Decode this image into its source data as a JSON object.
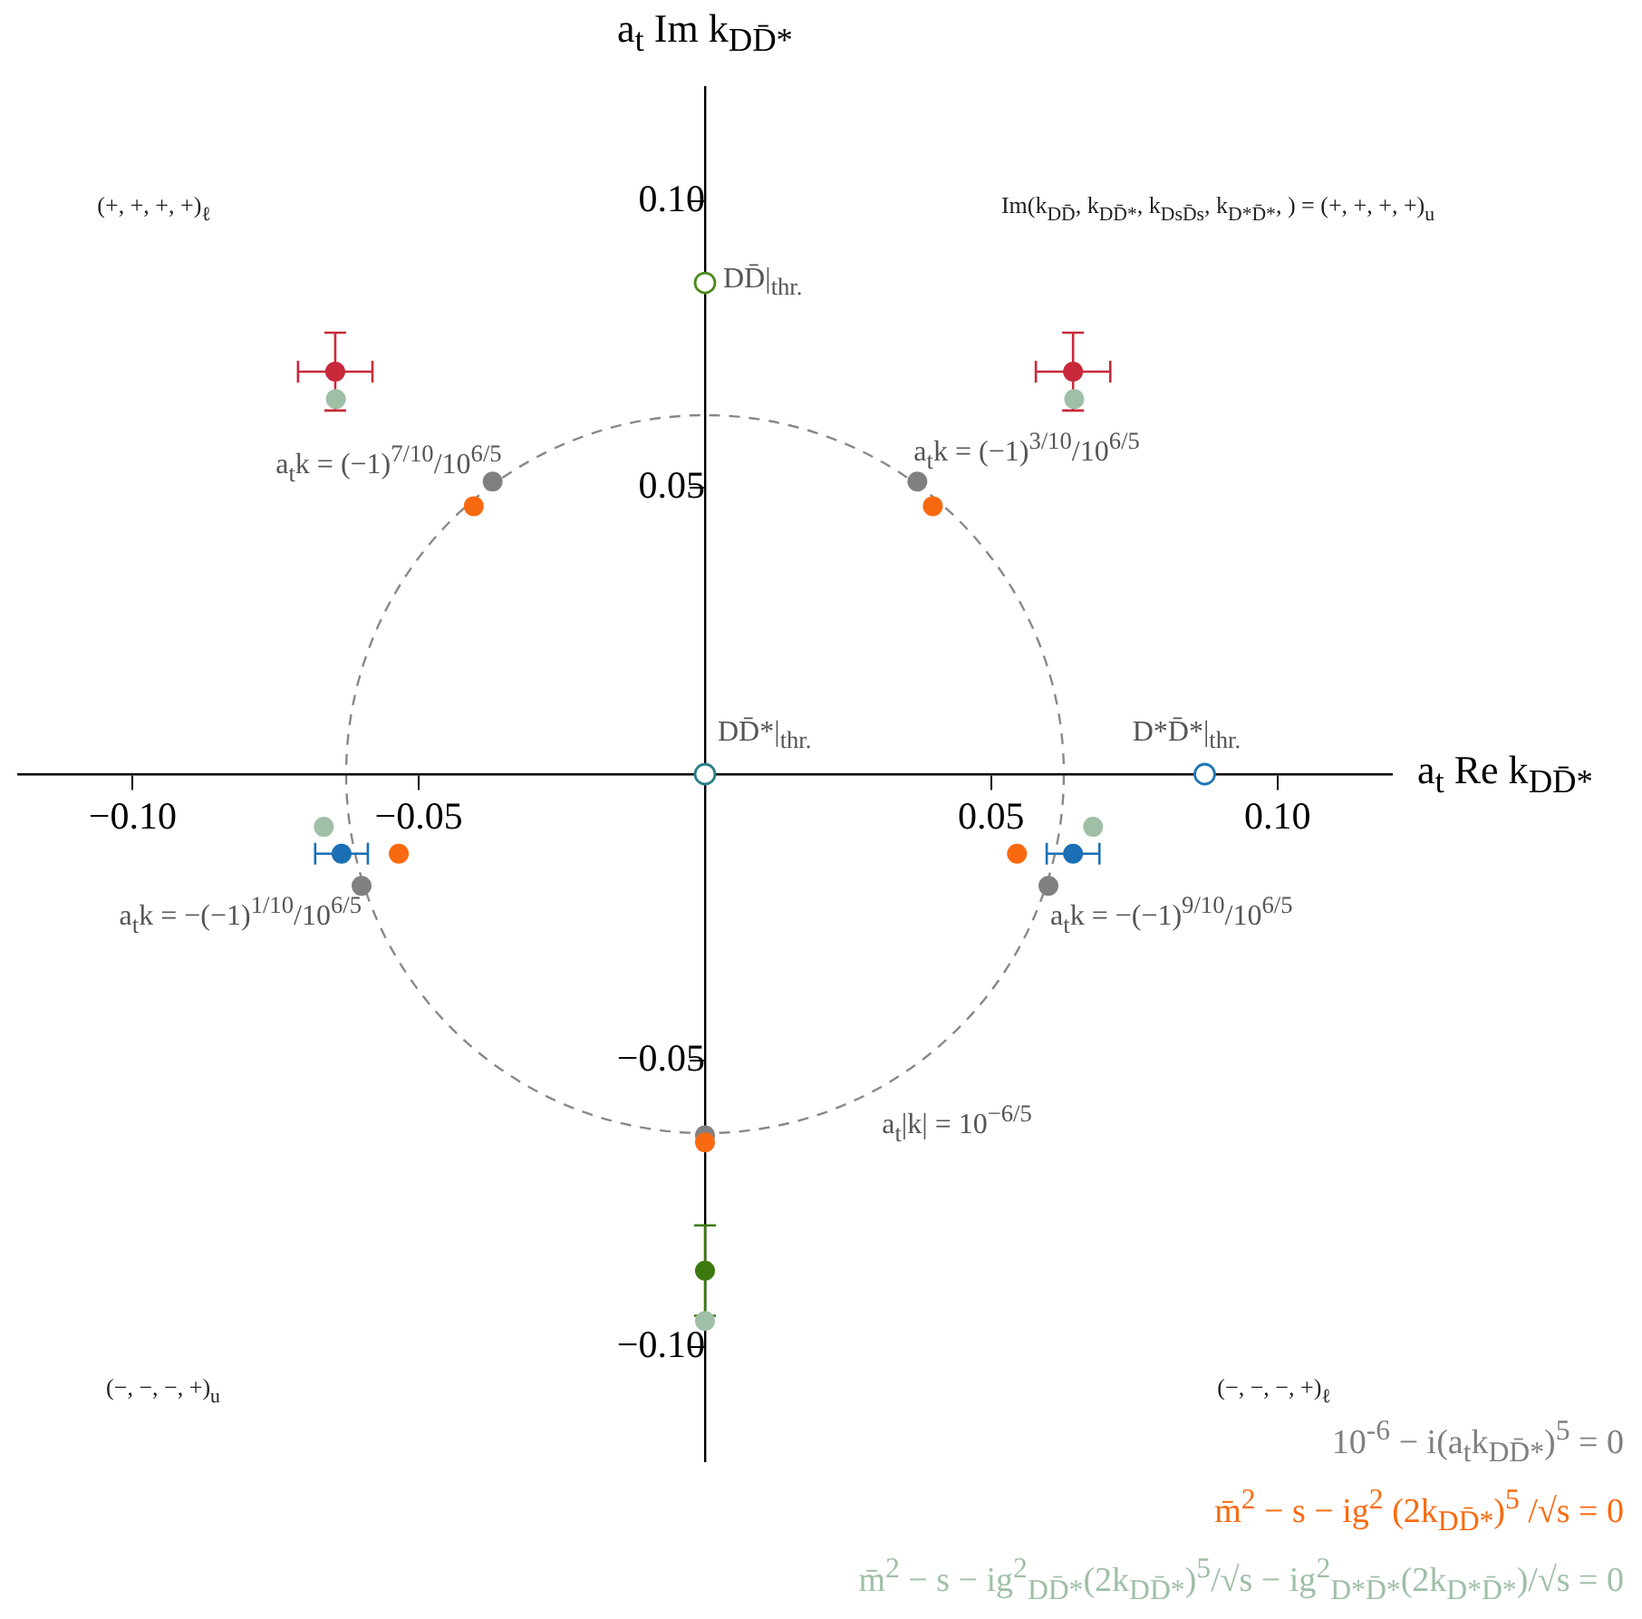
{
  "chart_data": {
    "type": "scatter",
    "xlabel": "a$_{t}$ Re k$_{DD̄*}$",
    "ylabel": "a$_{t}$ Im k$_{DD̄*}$",
    "xlim": [
      -0.12,
      0.12
    ],
    "ylim": [
      -0.12,
      0.12
    ],
    "xticks": [
      {
        "value": -0.1,
        "label": "−0.10"
      },
      {
        "value": -0.05,
        "label": "−0.05"
      },
      {
        "value": 0.05,
        "label": "0.05"
      },
      {
        "value": 0.1,
        "label": "0.10"
      }
    ],
    "yticks": [
      {
        "value": -0.1,
        "label": "−0.10"
      },
      {
        "value": -0.05,
        "label": "−0.05"
      },
      {
        "value": 0.05,
        "label": "0.05"
      },
      {
        "value": 0.1,
        "label": "0.10"
      }
    ],
    "grid": false,
    "marker": "circle",
    "series": [
      {
        "name": "10$^{-6}$ − i(a$_{t}$k$_{DD̄*}$)$^{5}$ = 0",
        "color": "#808080",
        "x": [
          -0.0371,
          0.0371,
          -0.06,
          0.06,
          0
        ],
        "values": [
          0.0511,
          0.0511,
          -0.0195,
          -0.0195,
          -0.0631
        ]
      },
      {
        "name": "m̄$^{2}$ − s − ig$^{2}$ (2k$_{DD̄*}$)$^{5}$ /√s = 0",
        "color": "#f96a10",
        "x": [
          -0.0404,
          0.0398,
          -0.0535,
          0.0545,
          0
        ],
        "values": [
          0.0468,
          0.0468,
          -0.0139,
          -0.0139,
          -0.0643
        ]
      },
      {
        "name": "m̄$^{2}$ − s − ig$^{2}$$_{DD̄*}$(2k$_{DD̄*}$)$^{5}$/√s − ig$^{2}$$_{D*D̄*}$(2k$_{D*D̄*}$)/√s = 0",
        "color": "#9fbfa6",
        "x": [
          -0.0645,
          0.0645,
          -0.0666,
          0.0678,
          0
        ],
        "values": [
          0.0655,
          0.0655,
          -0.0092,
          -0.0092,
          -0.0955
        ]
      },
      {
        "color": "#c8283a",
        "x": [
          -0.0646,
          0.0643
        ],
        "values": [
          0.0703,
          0.0703
        ],
        "errors": [
          0.0068,
          0.0068
        ],
        "xerrors": [
          0.0065,
          0.0065
        ]
      },
      {
        "color": "#1a6fb5",
        "x": [
          -0.0635,
          0.0643
        ],
        "values": [
          -0.0139,
          -0.0139
        ],
        "xerrors": [
          0.0046,
          0.0046
        ]
      },
      {
        "color": "#3c7a0f",
        "x": [
          0
        ],
        "values": [
          -0.0867
        ],
        "errors": [
          [
            -0.0946,
            -0.0788
          ]
        ]
      },
      {
        "color": "#4e8a1e",
        "x": [
          0,
          0,
          0.0873
        ],
        "values": [
          0.0858,
          0,
          0
        ],
        "colors": [
          "#4e8a1e",
          "#2a7f86",
          "#1f77b4"
        ]
      }
    ],
    "annotations": [
      "(+, +, +, +)$_{ℓ}$",
      "Im(k$_{DD̄}$, k$_{DD̄*}$, k$_{DsD̄s}$, k$_{D*D̄*}$, ) = (+, +, +, +)$_{u}$",
      "(−, −, −, +)$_{u}$",
      "(−, −, −, +)$_{ℓ}$",
      {
        "text": "DD̄|$_{thr.}$",
        "x": 0,
        "y": 0.0858
      },
      {
        "text": "DD̄*|$_{thr.}$",
        "x": 0,
        "y": 0
      },
      {
        "text": "D*D̄*|$_{thr.}$",
        "x": 0.0873,
        "y": 0
      },
      {
        "text": "a$_{t}$k = (−1)$^{7/10}$/10$^{6/5}$",
        "x": -0.0371,
        "y": 0.0511
      },
      {
        "text": "a$_{t}$k = (−1)$^{3/10}$/10$^{6/5}$",
        "x": 0.0371,
        "y": 0.0511
      },
      {
        "text": "a$_{t}$k = −(−1)$^{1/10}$/10$^{6/5}$",
        "x": -0.06,
        "y": -0.0195
      },
      {
        "text": "a$_{t}$k = −(−1)$^{9/10}$/10$^{6/5}$",
        "x": 0.06,
        "y": -0.0195
      },
      "a$_{t}$|k| = 10$^{−6/5}$"
    ]
  }
}
